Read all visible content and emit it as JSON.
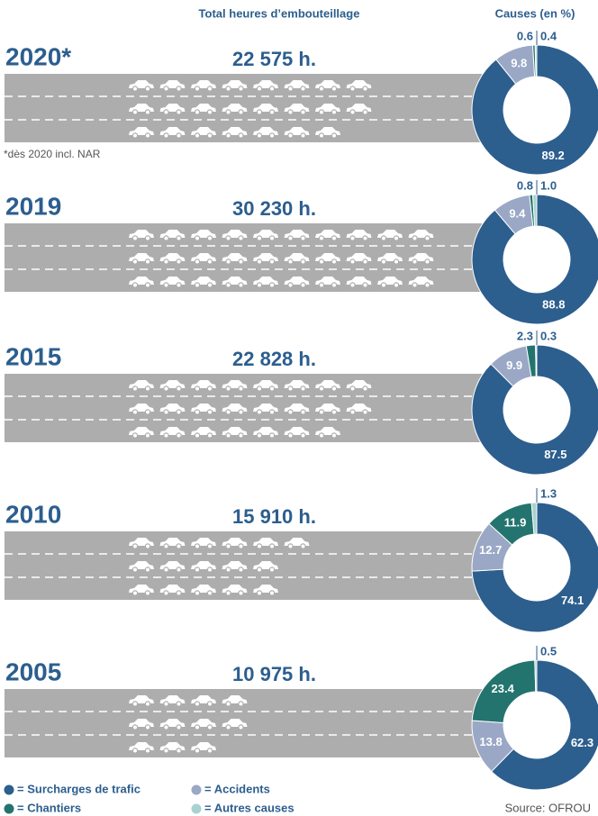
{
  "header": {
    "title_hours": "Total heures d’embouteillage",
    "title_causes": "Causes (en %)"
  },
  "panels": [
    {
      "year": "2020*",
      "total": {
        "value": 22575,
        "label": "22 575 h."
      },
      "note": "*dès 2020 incl. NAR",
      "causes": [
        89.2,
        9.8,
        0.6,
        0.4
      ],
      "value_labels": [
        "89.2",
        "9.8",
        "0.6",
        "0.4"
      ]
    },
    {
      "year": "2019",
      "total": {
        "value": 30230,
        "label": "30 230 h."
      },
      "causes": [
        88.8,
        9.4,
        0.8,
        1.0
      ],
      "value_labels": [
        "88.8",
        "9.4",
        "0.8",
        "1.0"
      ]
    },
    {
      "year": "2015",
      "total": {
        "value": 22828,
        "label": "22 828 h."
      },
      "causes": [
        87.5,
        9.9,
        2.3,
        0.3
      ],
      "value_labels": [
        "87.5",
        "9.9",
        "2.3",
        "0.3"
      ]
    },
    {
      "year": "2010",
      "total": {
        "value": 15910,
        "label": "15 910 h."
      },
      "causes": [
        74.1,
        12.7,
        11.9,
        1.3
      ],
      "value_labels": [
        "74.1",
        "12.7",
        "11.9",
        "1.3"
      ]
    },
    {
      "year": "2005",
      "total": {
        "value": 10975,
        "label": "10 975 h."
      },
      "causes": [
        62.3,
        13.8,
        23.4,
        0.5
      ],
      "value_labels": [
        "62.3",
        "13.8",
        "23.4",
        "0.5"
      ]
    }
  ],
  "legend": [
    {
      "label": "= Surcharges de trafic",
      "color": "#2c5e8e"
    },
    {
      "label": "= Accidents",
      "color": "#9aa8c6"
    },
    {
      "label": "= Chantiers",
      "color": "#23746e"
    },
    {
      "label": "= Autres causes",
      "color": "#a8d2cf"
    }
  ],
  "source": "Source: OFROU"
}
